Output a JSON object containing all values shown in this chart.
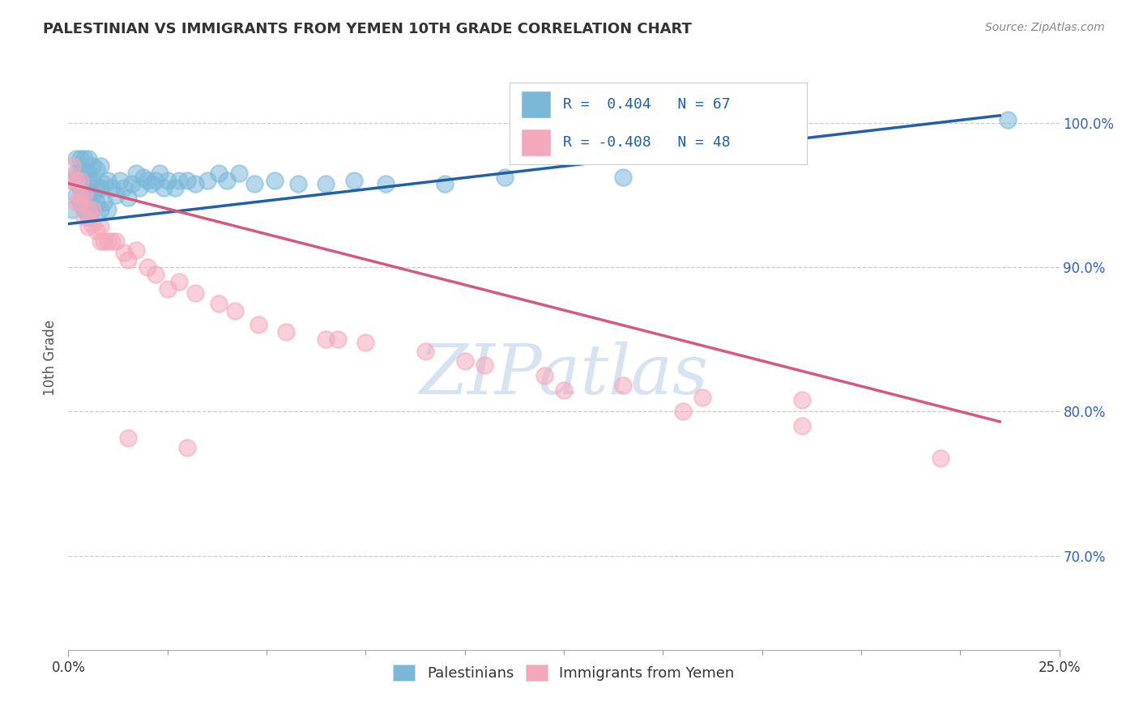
{
  "title": "PALESTINIAN VS IMMIGRANTS FROM YEMEN 10TH GRADE CORRELATION CHART",
  "source": "Source: ZipAtlas.com",
  "ylabel": "10th Grade",
  "ytick_values": [
    0.7,
    0.8,
    0.9,
    1.0
  ],
  "ytick_labels": [
    "70.0%",
    "80.0%",
    "90.0%",
    "100.0%"
  ],
  "xmin": 0.0,
  "xmax": 0.25,
  "ymin": 0.635,
  "ymax": 1.04,
  "blue_color": "#7ab8d9",
  "pink_color": "#f4a8bc",
  "line_blue": "#2060a8",
  "line_pink": "#d45880",
  "blue_trend_x0": 0.0,
  "blue_trend_y0": 0.93,
  "blue_trend_x1": 0.235,
  "blue_trend_y1": 1.005,
  "pink_trend_x0": 0.0,
  "pink_trend_y0": 0.958,
  "pink_trend_x1": 0.235,
  "pink_trend_y1": 0.793,
  "legend1_text": "R =  0.404   N = 67",
  "legend2_text": "R = -0.408   N = 48",
  "legend_text_color": "#2060a8",
  "watermark_text": "ZIPatlas",
  "watermark_color": "#c8d8ec",
  "palestinians_x": [
    0.001,
    0.001,
    0.002,
    0.002,
    0.002,
    0.003,
    0.003,
    0.003,
    0.003,
    0.004,
    0.004,
    0.004,
    0.004,
    0.004,
    0.005,
    0.005,
    0.005,
    0.005,
    0.005,
    0.005,
    0.006,
    0.006,
    0.006,
    0.006,
    0.007,
    0.007,
    0.007,
    0.008,
    0.008,
    0.008,
    0.009,
    0.009,
    0.01,
    0.01,
    0.011,
    0.012,
    0.013,
    0.014,
    0.015,
    0.016,
    0.017,
    0.018,
    0.019,
    0.02,
    0.021,
    0.022,
    0.023,
    0.024,
    0.025,
    0.027,
    0.028,
    0.03,
    0.032,
    0.035,
    0.038,
    0.04,
    0.043,
    0.047,
    0.052,
    0.058,
    0.065,
    0.072,
    0.08,
    0.095,
    0.11,
    0.14,
    0.237
  ],
  "palestinians_y": [
    0.94,
    0.96,
    0.95,
    0.965,
    0.975,
    0.945,
    0.955,
    0.965,
    0.975,
    0.94,
    0.95,
    0.955,
    0.965,
    0.975,
    0.935,
    0.945,
    0.95,
    0.96,
    0.965,
    0.975,
    0.94,
    0.95,
    0.96,
    0.97,
    0.945,
    0.955,
    0.968,
    0.94,
    0.955,
    0.97,
    0.945,
    0.958,
    0.94,
    0.96,
    0.955,
    0.95,
    0.96,
    0.955,
    0.948,
    0.958,
    0.965,
    0.955,
    0.962,
    0.96,
    0.958,
    0.96,
    0.965,
    0.955,
    0.96,
    0.955,
    0.96,
    0.96,
    0.958,
    0.96,
    0.965,
    0.96,
    0.965,
    0.958,
    0.96,
    0.958,
    0.958,
    0.96,
    0.958,
    0.958,
    0.962,
    0.962,
    1.002
  ],
  "yemen_x": [
    0.001,
    0.001,
    0.002,
    0.002,
    0.003,
    0.003,
    0.003,
    0.004,
    0.004,
    0.005,
    0.005,
    0.006,
    0.006,
    0.007,
    0.008,
    0.008,
    0.009,
    0.01,
    0.011,
    0.012,
    0.014,
    0.015,
    0.017,
    0.02,
    0.022,
    0.025,
    0.028,
    0.032,
    0.038,
    0.042,
    0.048,
    0.055,
    0.065,
    0.075,
    0.09,
    0.105,
    0.12,
    0.14,
    0.16,
    0.185,
    0.015,
    0.03,
    0.068,
    0.1,
    0.125,
    0.155,
    0.185,
    0.22
  ],
  "yemen_y": [
    0.96,
    0.97,
    0.945,
    0.96,
    0.945,
    0.95,
    0.96,
    0.935,
    0.95,
    0.928,
    0.94,
    0.93,
    0.94,
    0.925,
    0.918,
    0.928,
    0.918,
    0.918,
    0.918,
    0.918,
    0.91,
    0.905,
    0.912,
    0.9,
    0.895,
    0.885,
    0.89,
    0.882,
    0.875,
    0.87,
    0.86,
    0.855,
    0.85,
    0.848,
    0.842,
    0.832,
    0.825,
    0.818,
    0.81,
    0.808,
    0.782,
    0.775,
    0.85,
    0.835,
    0.815,
    0.8,
    0.79,
    0.768
  ]
}
